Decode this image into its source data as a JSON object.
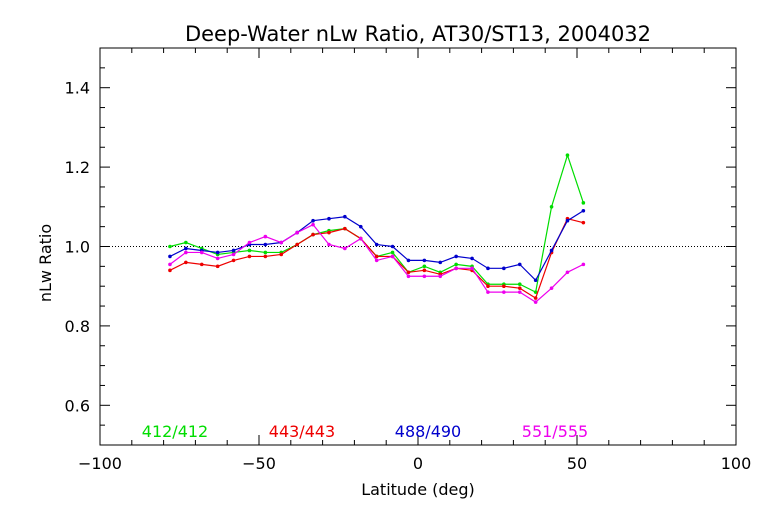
{
  "chart_data": {
    "type": "line",
    "title": "Deep-Water nLw Ratio, AT30/ST13, 2004032",
    "xlabel": "Latitude (deg)",
    "ylabel": "nLw Ratio",
    "xlim": [
      -100,
      100
    ],
    "ylim": [
      0.5,
      1.5
    ],
    "xticks": [
      -100,
      -50,
      0,
      50,
      100
    ],
    "xtick_labels": [
      "−100",
      "−50",
      "0",
      "50",
      "100"
    ],
    "yticks": [
      0.6,
      0.8,
      1.0,
      1.2,
      1.4
    ],
    "ytick_labels": [
      "0.6",
      "0.8",
      "1.0",
      "1.2",
      "1.4"
    ],
    "reference_line": 1.0,
    "grid": false,
    "legend_placement": "bottom, inside plot",
    "x": [
      -78,
      -73,
      -68,
      -63,
      -58,
      -53,
      -48,
      -43,
      -38,
      -33,
      -28,
      -23,
      -18,
      -13,
      -8,
      -3,
      2,
      7,
      12,
      17,
      22,
      27,
      32,
      37,
      42,
      47,
      52
    ],
    "series": [
      {
        "name": "412/412",
        "color": "#00dd00",
        "values": [
          1.0,
          1.01,
          0.995,
          0.98,
          0.985,
          0.99,
          0.985,
          0.985,
          1.005,
          1.03,
          1.04,
          1.045,
          1.02,
          0.975,
          0.985,
          0.935,
          0.95,
          0.935,
          0.955,
          0.95,
          0.905,
          0.905,
          0.905,
          0.885,
          1.1,
          1.23,
          1.11
        ]
      },
      {
        "name": "443/443",
        "color": "#ee0000",
        "values": [
          0.94,
          0.96,
          0.955,
          0.95,
          0.965,
          0.975,
          0.975,
          0.98,
          1.005,
          1.03,
          1.035,
          1.045,
          1.02,
          0.975,
          0.975,
          0.935,
          0.94,
          0.93,
          0.945,
          0.94,
          0.9,
          0.9,
          0.895,
          0.87,
          0.985,
          1.07,
          1.06
        ]
      },
      {
        "name": "488/490",
        "color": "#0000cc",
        "values": [
          0.975,
          0.995,
          0.99,
          0.985,
          0.99,
          1.005,
          1.005,
          1.01,
          1.035,
          1.065,
          1.07,
          1.075,
          1.05,
          1.005,
          1.0,
          0.965,
          0.965,
          0.96,
          0.975,
          0.97,
          0.945,
          0.945,
          0.955,
          0.915,
          0.99,
          1.065,
          1.09
        ]
      },
      {
        "name": "551/555",
        "color": "#ee00ee",
        "values": [
          0.955,
          0.985,
          0.985,
          0.97,
          0.98,
          1.01,
          1.025,
          1.01,
          1.035,
          1.055,
          1.005,
          0.995,
          1.02,
          0.965,
          0.975,
          0.925,
          0.925,
          0.925,
          0.945,
          0.945,
          0.885,
          0.885,
          0.885,
          0.86,
          0.895,
          0.935,
          0.955
        ]
      }
    ]
  }
}
